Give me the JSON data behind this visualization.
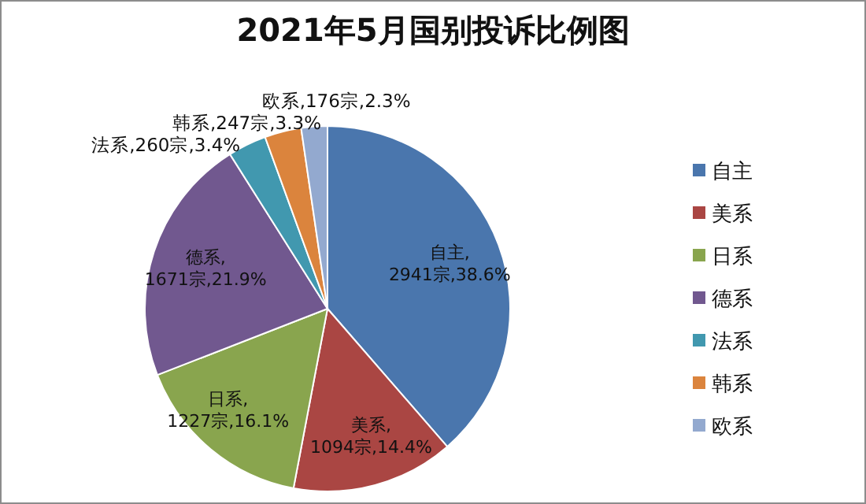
{
  "chart_data": {
    "type": "pie",
    "title": "2021年5月国别投诉比例图",
    "categories": [
      "自主",
      "美系",
      "日系",
      "德系",
      "法系",
      "韩系",
      "欧系"
    ],
    "values": [
      2941,
      1094,
      1227,
      1671,
      260,
      247,
      176
    ],
    "colors": [
      "#4a76ad",
      "#aa4643",
      "#89a54e",
      "#71588f",
      "#4198af",
      "#db843d",
      "#93a9cf"
    ],
    "value_labels": [
      "自主,2941宗,38.6%",
      "美系,1094宗,14.4%",
      "日系,1227宗,16.1%",
      "德系,1671宗,21.9%",
      "法系,260宗,3.4%",
      "韩系,247宗,3.3%",
      "欧系,176宗,2.3%"
    ],
    "legend": "right"
  }
}
